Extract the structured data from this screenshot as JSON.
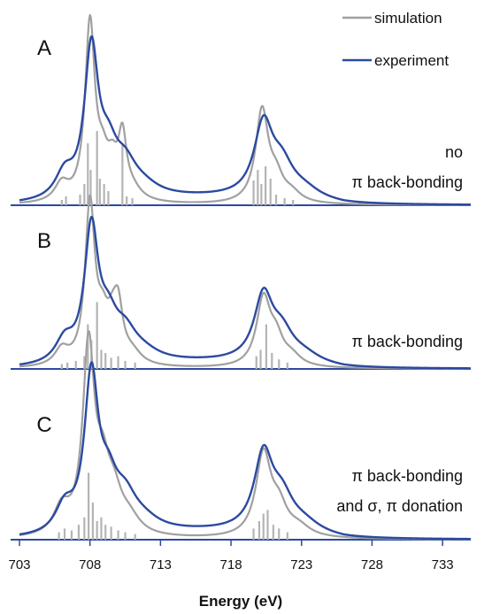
{
  "chart_data": {
    "type": "line",
    "xlabel": "Energy (eV)",
    "xlim": [
      703,
      735
    ],
    "x_ticks": [
      "703",
      "708",
      "713",
      "718",
      "723",
      "728",
      "733"
    ],
    "legend": [
      {
        "name": "simulation",
        "color": "#a0a0a0"
      },
      {
        "name": "experiment",
        "color": "#2b4aa0"
      }
    ],
    "colors": {
      "simulation": "#a0a0a0",
      "experiment": "#2b4aa0",
      "sticks": "#b4b4b4"
    },
    "panels": [
      {
        "label": "A",
        "annotation": [
          "no",
          "π back-bonding"
        ],
        "simulation": {
          "peaks": [
            [
              706.0,
              0.1,
              0.6
            ],
            [
              708.0,
              1.0,
              0.42
            ],
            [
              708.9,
              0.18,
              0.5
            ],
            [
              709.6,
              0.16,
              0.45
            ],
            [
              710.3,
              0.33,
              0.35
            ],
            [
              711.0,
              0.06,
              0.8
            ],
            [
              720.2,
              0.52,
              0.55
            ],
            [
              721.2,
              0.12,
              0.6
            ],
            [
              722.3,
              0.05,
              0.8
            ]
          ]
        },
        "experiment": {
          "peaks": [
            [
              706.2,
              0.14,
              0.8
            ],
            [
              708.1,
              0.83,
              0.6
            ],
            [
              709.3,
              0.22,
              0.8
            ],
            [
              710.5,
              0.16,
              1.0
            ],
            [
              711.8,
              0.05,
              1.4
            ],
            [
              720.3,
              0.4,
              0.8
            ],
            [
              721.6,
              0.17,
              1.0
            ],
            [
              723.2,
              0.05,
              1.4
            ]
          ],
          "tail": [
            0.035,
            726
          ]
        },
        "sticks": [
          [
            706.0,
            0.03
          ],
          [
            706.3,
            0.05
          ],
          [
            707.3,
            0.06
          ],
          [
            707.6,
            0.12
          ],
          [
            707.85,
            0.35
          ],
          [
            708.05,
            0.2
          ],
          [
            708.5,
            0.42
          ],
          [
            708.7,
            0.15
          ],
          [
            709.0,
            0.12
          ],
          [
            709.3,
            0.08
          ],
          [
            710.3,
            0.35
          ],
          [
            710.6,
            0.05
          ],
          [
            711.0,
            0.04
          ],
          [
            719.6,
            0.14
          ],
          [
            719.9,
            0.2
          ],
          [
            720.15,
            0.12
          ],
          [
            720.45,
            0.22
          ],
          [
            720.8,
            0.15
          ],
          [
            721.2,
            0.06
          ],
          [
            721.8,
            0.04
          ],
          [
            722.4,
            0.03
          ]
        ]
      },
      {
        "label": "B",
        "annotation": [
          "π back-bonding"
        ],
        "simulation": {
          "peaks": [
            [
              706.0,
              0.1,
              0.6
            ],
            [
              708.0,
              1.0,
              0.42
            ],
            [
              708.9,
              0.22,
              0.5
            ],
            [
              709.6,
              0.18,
              0.45
            ],
            [
              710.0,
              0.3,
              0.4
            ],
            [
              711.0,
              0.07,
              0.8
            ],
            [
              720.3,
              0.42,
              0.6
            ],
            [
              721.2,
              0.15,
              0.6
            ],
            [
              722.3,
              0.06,
              0.8
            ]
          ]
        },
        "experiment": {
          "peaks": [
            [
              706.2,
              0.14,
              0.8
            ],
            [
              708.1,
              0.83,
              0.6
            ],
            [
              709.3,
              0.22,
              0.8
            ],
            [
              710.5,
              0.16,
              1.0
            ],
            [
              711.8,
              0.05,
              1.4
            ],
            [
              720.3,
              0.4,
              0.8
            ],
            [
              721.6,
              0.17,
              1.0
            ],
            [
              723.2,
              0.05,
              1.4
            ]
          ],
          "tail": [
            0.035,
            726
          ]
        },
        "sticks": [
          [
            706.0,
            0.03
          ],
          [
            706.4,
            0.04
          ],
          [
            707.0,
            0.05
          ],
          [
            707.6,
            0.08
          ],
          [
            707.85,
            0.28
          ],
          [
            708.1,
            0.18
          ],
          [
            708.5,
            0.42
          ],
          [
            708.8,
            0.12
          ],
          [
            709.1,
            0.1
          ],
          [
            709.5,
            0.07
          ],
          [
            710.0,
            0.08
          ],
          [
            710.5,
            0.05
          ],
          [
            711.2,
            0.04
          ],
          [
            719.8,
            0.08
          ],
          [
            720.1,
            0.12
          ],
          [
            720.5,
            0.28
          ],
          [
            720.9,
            0.1
          ],
          [
            721.4,
            0.06
          ],
          [
            722.0,
            0.04
          ]
        ]
      },
      {
        "label": "C",
        "annotation": [
          "π back-bonding",
          "and σ, π donation"
        ],
        "simulation": {
          "peaks": [
            [
              706.0,
              0.14,
              0.7
            ],
            [
              707.9,
              1.0,
              0.5
            ],
            [
              708.9,
              0.28,
              0.6
            ],
            [
              709.7,
              0.18,
              0.7
            ],
            [
              710.8,
              0.08,
              0.9
            ],
            [
              720.3,
              0.44,
              0.65
            ],
            [
              721.4,
              0.14,
              0.7
            ],
            [
              722.8,
              0.05,
              1.0
            ]
          ]
        },
        "experiment": {
          "peaks": [
            [
              706.2,
              0.14,
              0.8
            ],
            [
              708.1,
              0.83,
              0.6
            ],
            [
              709.3,
              0.22,
              0.8
            ],
            [
              710.5,
              0.16,
              1.0
            ],
            [
              711.8,
              0.05,
              1.4
            ],
            [
              720.3,
              0.4,
              0.8
            ],
            [
              721.6,
              0.17,
              1.0
            ],
            [
              723.2,
              0.05,
              1.4
            ]
          ],
          "tail": [
            0.035,
            726
          ]
        },
        "sticks": [
          [
            705.8,
            0.04
          ],
          [
            706.2,
            0.06
          ],
          [
            706.7,
            0.05
          ],
          [
            707.2,
            0.08
          ],
          [
            707.6,
            0.12
          ],
          [
            707.9,
            0.36
          ],
          [
            708.2,
            0.2
          ],
          [
            708.5,
            0.1
          ],
          [
            708.8,
            0.12
          ],
          [
            709.1,
            0.08
          ],
          [
            709.5,
            0.07
          ],
          [
            710.0,
            0.05
          ],
          [
            710.5,
            0.04
          ],
          [
            711.2,
            0.03
          ],
          [
            719.6,
            0.06
          ],
          [
            720.0,
            0.1
          ],
          [
            720.3,
            0.14
          ],
          [
            720.6,
            0.16
          ],
          [
            721.0,
            0.08
          ],
          [
            721.4,
            0.06
          ],
          [
            722.0,
            0.04
          ]
        ]
      }
    ]
  }
}
